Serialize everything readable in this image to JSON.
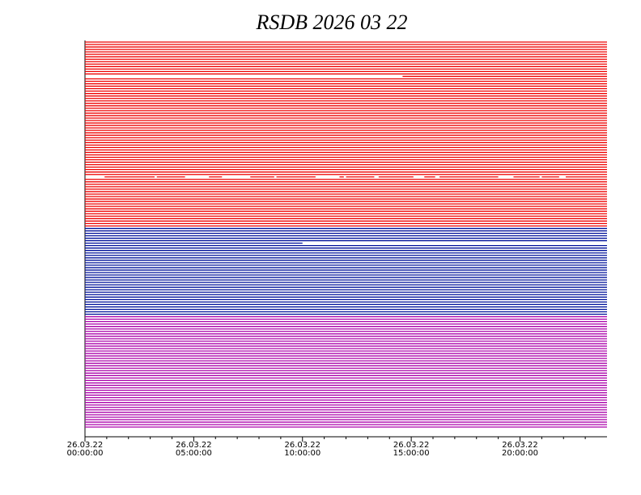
{
  "chart_data": {
    "type": "timeline",
    "title": "RSDB  2026  03  22",
    "xlim": [
      0,
      24
    ],
    "xticks": [
      {
        "value": 0,
        "label": [
          "26.03.22",
          "00:00:00"
        ]
      },
      {
        "value": 5,
        "label": [
          "26.03.22",
          "05:00:00"
        ]
      },
      {
        "value": 10,
        "label": [
          "26.03.22",
          "10:00:00"
        ]
      },
      {
        "value": 15,
        "label": [
          "26.03.22",
          "15:00:00"
        ]
      },
      {
        "value": 20,
        "label": [
          "26.03.22",
          "20:00:00"
        ]
      }
    ],
    "xminorticks": [
      1,
      2,
      3,
      4,
      6,
      7,
      8,
      9,
      11,
      12,
      13,
      14,
      16,
      17,
      18,
      19,
      21,
      22,
      23
    ],
    "series": [
      {
        "color": "#ee0000",
        "rows": [
          [
            [
              0,
              24
            ]
          ],
          [
            [
              0,
              24
            ]
          ],
          [
            [
              0,
              24
            ]
          ],
          [
            [
              0,
              24
            ]
          ],
          [
            [
              0,
              24
            ]
          ],
          [
            [
              0,
              24
            ]
          ],
          [
            [
              0,
              24
            ]
          ],
          [
            [
              0,
              24
            ]
          ],
          [
            [
              0,
              24
            ]
          ],
          [
            [
              0,
              24
            ]
          ],
          [
            [
              0,
              24
            ]
          ],
          [
            [
              0,
              24
            ]
          ],
          [
            [
              0,
              24
            ]
          ],
          [
            [
              0,
              24
            ]
          ],
          [
            [
              14.6,
              24
            ]
          ],
          [
            [
              0,
              24
            ]
          ],
          [
            [
              0,
              24
            ]
          ],
          [
            [
              0,
              24
            ]
          ],
          [
            [
              0,
              24
            ]
          ],
          [
            [
              0,
              24
            ]
          ],
          [
            [
              0,
              24
            ]
          ],
          [
            [
              0,
              24
            ]
          ],
          [
            [
              0,
              24
            ]
          ],
          [
            [
              0,
              24
            ]
          ],
          [
            [
              0,
              24
            ]
          ],
          [
            [
              0,
              24
            ]
          ],
          [
            [
              0,
              24
            ]
          ],
          [
            [
              0,
              24
            ]
          ],
          [
            [
              0,
              24
            ]
          ],
          [
            [
              0,
              24
            ]
          ],
          [
            [
              0,
              24
            ]
          ],
          [
            [
              0,
              24
            ]
          ],
          [
            [
              0,
              24
            ]
          ],
          [
            [
              0,
              24
            ]
          ],
          [
            [
              0,
              24
            ]
          ],
          [
            [
              0,
              24
            ]
          ],
          [
            [
              0,
              24
            ]
          ],
          [
            [
              0,
              24
            ]
          ],
          [
            [
              0,
              24
            ]
          ],
          [
            [
              0,
              24
            ]
          ],
          [
            [
              0,
              24
            ]
          ],
          [
            [
              0,
              24
            ]
          ],
          [
            [
              0,
              24
            ]
          ],
          [
            [
              0,
              24
            ]
          ],
          [
            [
              0,
              24
            ]
          ],
          [
            [
              0,
              24
            ]
          ],
          [
            [
              0,
              24
            ]
          ],
          [
            [
              0,
              24
            ]
          ],
          [
            [
              0,
              24
            ]
          ],
          [
            [
              0,
              24
            ]
          ],
          [
            [
              0,
              24
            ]
          ],
          [
            [
              0,
              24
            ]
          ],
          [
            [
              0,
              24
            ]
          ],
          [
            [
              0,
              24
            ]
          ],
          [
            [
              0,
              24
            ]
          ],
          [
            [
              0.9,
              3.2
            ],
            [
              3.3,
              4.6
            ],
            [
              5.7,
              6.3
            ],
            [
              7.6,
              8.7
            ],
            [
              8.8,
              10.6
            ],
            [
              11.7,
              11.9
            ],
            [
              12,
              13.3
            ],
            [
              13.5,
              15.1
            ],
            [
              15.6,
              16.1
            ],
            [
              16.3,
              19
            ],
            [
              19.7,
              20.9
            ],
            [
              21,
              21.8
            ],
            [
              22.1,
              24
            ]
          ],
          [
            [
              0,
              24
            ]
          ],
          [
            [
              0,
              24
            ]
          ],
          [
            [
              0,
              24
            ]
          ],
          [
            [
              0,
              24
            ]
          ],
          [
            [
              0,
              24
            ]
          ],
          [
            [
              0,
              24
            ]
          ],
          [
            [
              0,
              24
            ]
          ],
          [
            [
              0,
              24
            ]
          ],
          [
            [
              0,
              24
            ]
          ],
          [
            [
              0,
              24
            ]
          ],
          [
            [
              0,
              24
            ]
          ],
          [
            [
              0,
              24
            ]
          ],
          [
            [
              0,
              24
            ]
          ],
          [
            [
              0,
              24
            ]
          ],
          [
            [
              0,
              24
            ]
          ],
          [
            [
              0,
              24
            ]
          ],
          [
            [
              0,
              24
            ]
          ],
          [
            [
              0,
              24
            ]
          ],
          [
            [
              0,
              24
            ]
          ],
          [
            [
              0,
              24
            ]
          ]
        ]
      },
      {
        "color": "#00109a",
        "rows": [
          [
            [
              0,
              24
            ]
          ],
          [
            [
              0,
              24
            ]
          ],
          [
            [
              0,
              24
            ]
          ],
          [
            [
              0,
              24
            ]
          ],
          [
            [
              0,
              24
            ]
          ],
          [
            [
              0,
              24
            ]
          ],
          [
            [
              0,
              10
            ]
          ],
          [
            [
              0,
              24
            ]
          ],
          [
            [
              0,
              24
            ]
          ],
          [
            [
              0,
              24
            ]
          ],
          [
            [
              0,
              24
            ]
          ],
          [
            [
              0,
              24
            ]
          ],
          [
            [
              0,
              24
            ]
          ],
          [
            [
              0,
              24
            ]
          ],
          [
            [
              0,
              24
            ]
          ],
          [
            [
              0,
              24
            ]
          ],
          [
            [
              0,
              24
            ]
          ],
          [
            [
              0,
              24
            ]
          ],
          [
            [
              0,
              24
            ]
          ],
          [
            [
              0,
              24
            ]
          ],
          [
            [
              0,
              24
            ]
          ],
          [
            [
              0,
              24
            ]
          ],
          [
            [
              0,
              24
            ]
          ],
          [
            [
              0,
              24
            ]
          ],
          [
            [
              0,
              24
            ]
          ],
          [
            [
              0,
              24
            ]
          ],
          [
            [
              0,
              24
            ]
          ],
          [
            [
              0,
              24
            ]
          ],
          [
            [
              0,
              24
            ]
          ],
          [
            [
              0,
              24
            ]
          ],
          [
            [
              0,
              24
            ]
          ],
          [
            [
              0,
              24
            ]
          ],
          [
            [
              0,
              24
            ]
          ],
          [
            [
              0,
              24
            ]
          ],
          [
            [
              0,
              24
            ]
          ],
          [
            [
              0,
              24
            ]
          ]
        ]
      },
      {
        "color": "#aa00aa",
        "rows": [
          [
            [
              0,
              24
            ]
          ],
          [
            [
              0,
              24
            ]
          ],
          [
            [
              0,
              24
            ]
          ],
          [
            [
              0,
              24
            ]
          ],
          [
            [
              0,
              24
            ]
          ],
          [
            [
              0,
              24
            ]
          ],
          [
            [
              0,
              24
            ]
          ],
          [
            [
              0,
              24
            ]
          ],
          [
            [
              0,
              24
            ]
          ],
          [
            [
              0,
              24
            ]
          ],
          [
            [
              0,
              24
            ]
          ],
          [
            [
              0,
              24
            ]
          ],
          [
            [
              0,
              24
            ]
          ],
          [
            [
              0,
              24
            ]
          ],
          [
            [
              0,
              24
            ]
          ],
          [
            [
              0,
              24
            ]
          ],
          [
            [
              0,
              24
            ]
          ],
          [
            [
              0,
              24
            ]
          ],
          [
            [
              0,
              24
            ]
          ],
          [
            [
              0,
              24
            ]
          ],
          [
            [
              0,
              24
            ]
          ],
          [
            [
              0,
              24
            ]
          ],
          [
            [
              0,
              24
            ]
          ],
          [
            [
              0,
              24
            ]
          ],
          [
            [
              0,
              24
            ]
          ],
          [
            [
              0,
              24
            ]
          ],
          [
            [
              0,
              24
            ]
          ],
          [
            [
              0,
              24
            ]
          ],
          [
            [
              0,
              24
            ]
          ],
          [
            [
              0,
              24
            ]
          ],
          [
            [
              0,
              24
            ]
          ],
          [
            [
              0,
              24
            ]
          ],
          [
            [
              0,
              24
            ]
          ],
          [
            [
              0,
              24
            ]
          ],
          [
            [
              0,
              24
            ]
          ],
          [
            [
              0,
              24
            ]
          ],
          [
            [
              0,
              24
            ]
          ],
          [
            [
              0,
              24
            ]
          ],
          [
            [
              0,
              24
            ]
          ],
          [
            [
              0,
              24
            ]
          ],
          [
            [
              0,
              24
            ]
          ],
          [
            [
              0,
              24
            ]
          ],
          [
            [
              0,
              24
            ]
          ],
          [
            [
              0,
              24
            ]
          ],
          [
            [
              0,
              24
            ]
          ],
          [
            [
              0,
              24
            ]
          ]
        ]
      }
    ]
  }
}
